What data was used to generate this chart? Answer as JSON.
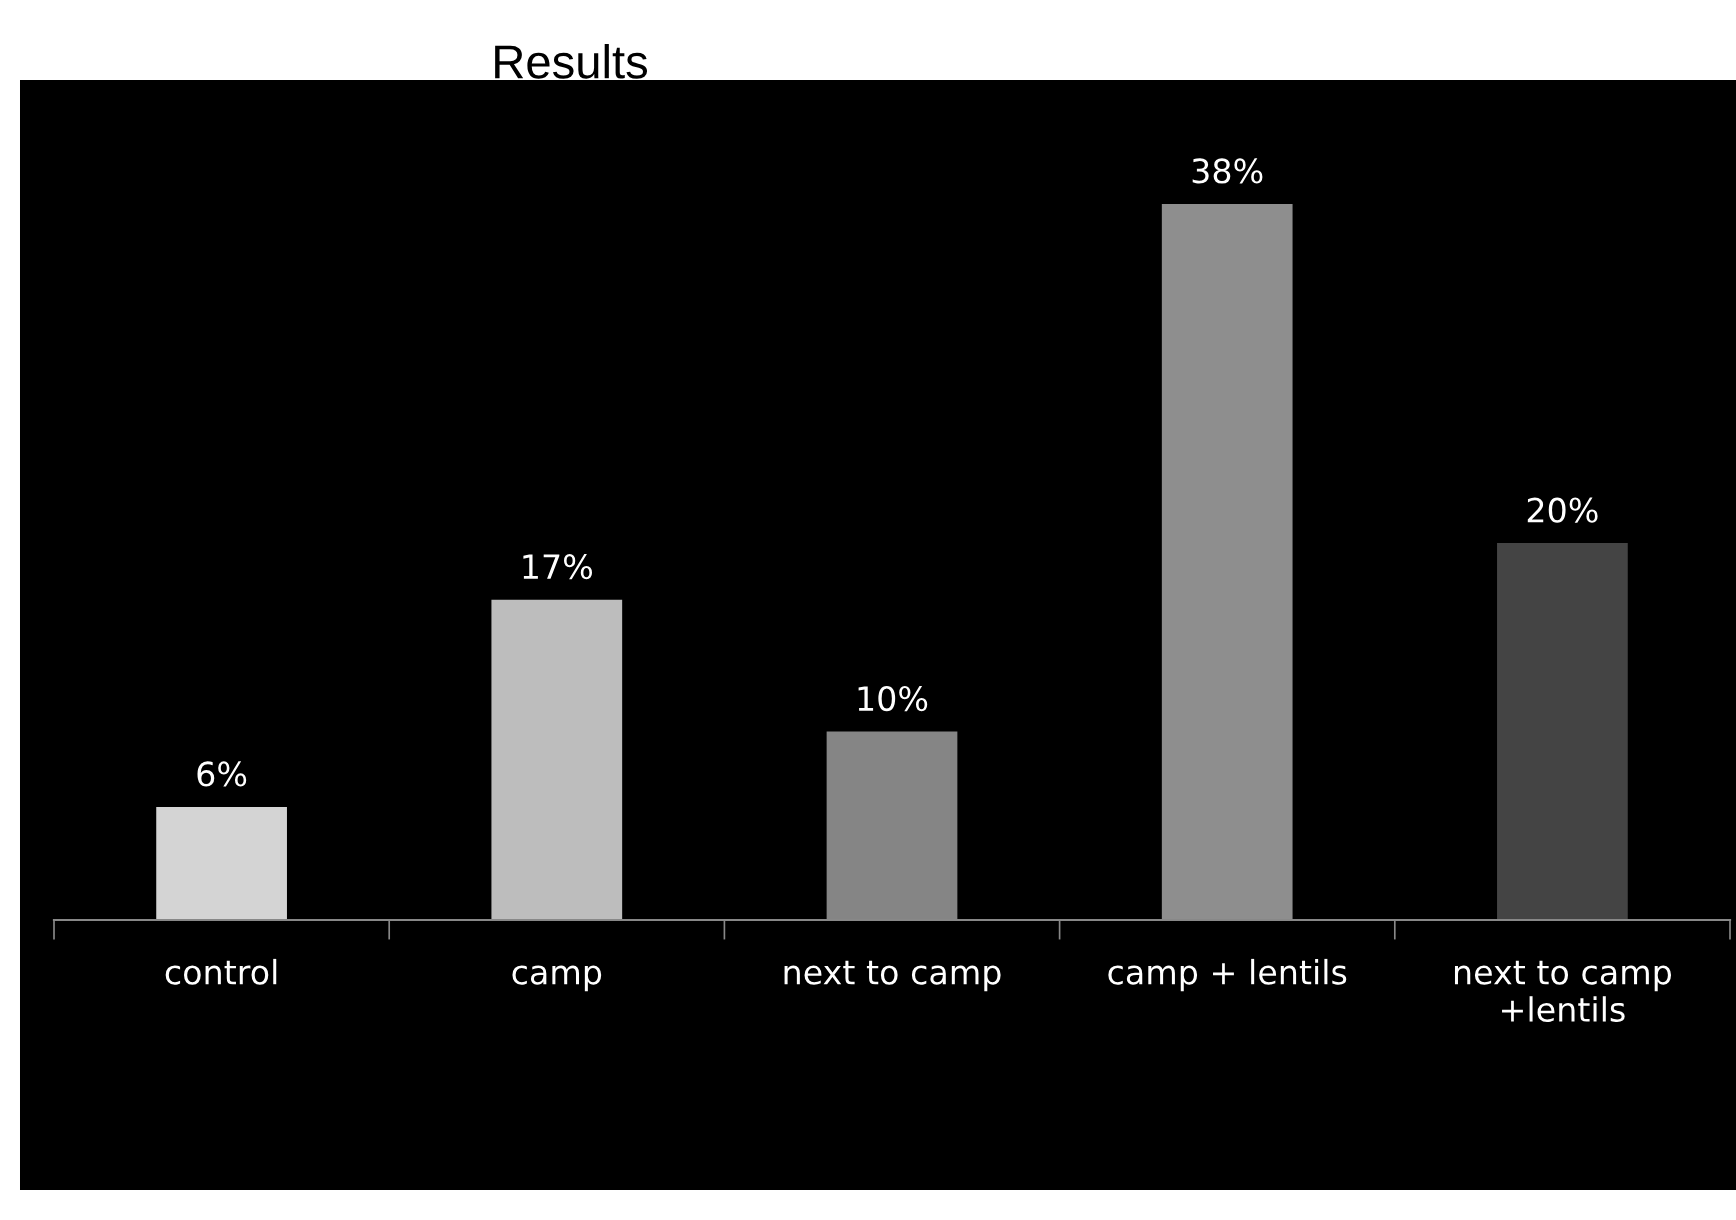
{
  "chart_data": {
    "type": "bar",
    "title": "Results",
    "categories": [
      "control",
      "camp",
      "next to camp",
      "camp + lentils",
      "next to camp\n+lentils"
    ],
    "values": [
      6,
      17,
      10,
      38,
      20
    ],
    "value_labels": [
      "6%",
      "17%",
      "10%",
      "38%",
      "20%"
    ],
    "colors": [
      "#d4d4d4",
      "#bdbdbd",
      "#858585",
      "#8e8e8e",
      "#444444"
    ]
  }
}
